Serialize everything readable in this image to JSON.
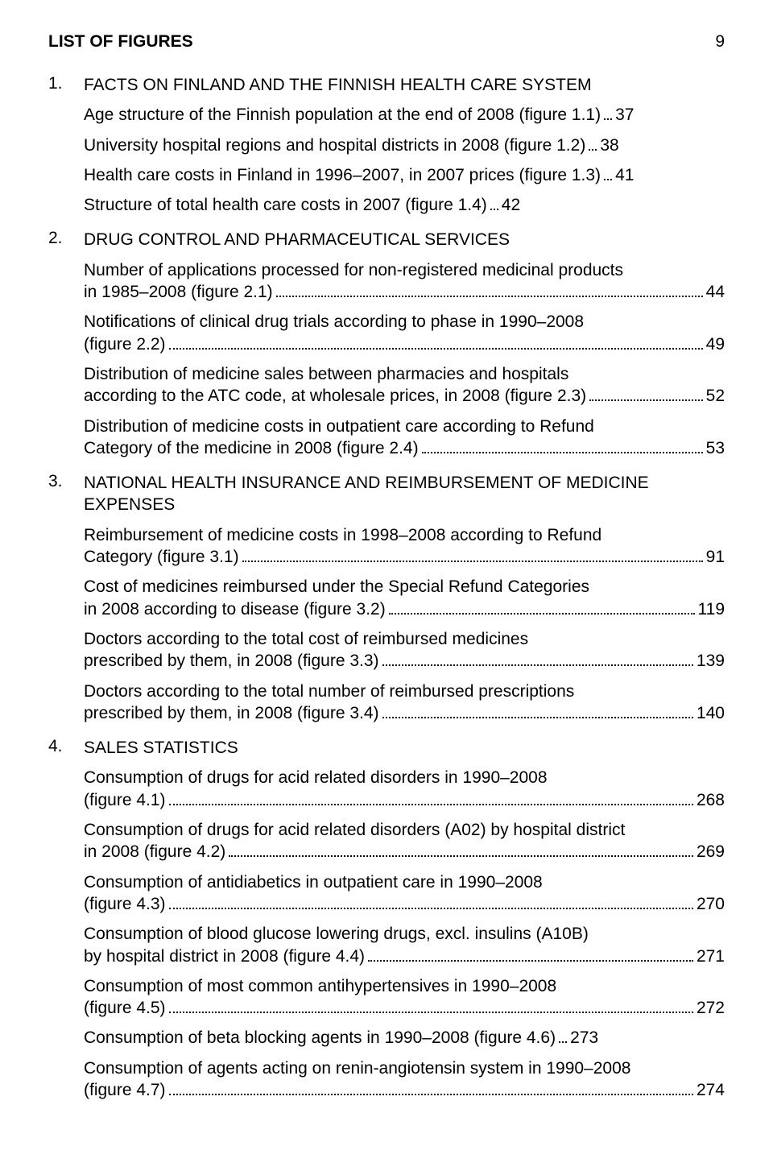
{
  "page_number": "9",
  "title": "LIST OF FIGURES",
  "sections": [
    {
      "num": "1.",
      "heading": "FACTS ON FINLAND AND THE FINNISH HEALTH CARE SYSTEM",
      "entries": [
        {
          "lines": [
            "Age structure of the Finnish population at the end of 2008 (figure 1.1)"
          ],
          "page": "37"
        },
        {
          "lines": [
            "University hospital regions and hospital districts in 2008 (figure 1.2)"
          ],
          "page": "38"
        },
        {
          "lines": [
            "Health care costs in Finland in 1996–2007, in 2007 prices (figure 1.3)"
          ],
          "page": "41"
        },
        {
          "lines": [
            "Structure of total health care costs in 2007 (figure 1.4)"
          ],
          "page": "42"
        }
      ]
    },
    {
      "num": "2.",
      "heading": "DRUG CONTROL AND PHARMACEUTICAL SERVICES",
      "entries": [
        {
          "lines": [
            "Number of applications processed for non-registered medicinal products",
            "in 1985–2008 (figure 2.1)"
          ],
          "page": "44"
        },
        {
          "lines": [
            "Notifications of clinical drug trials according to phase in 1990–2008",
            "(figure 2.2)"
          ],
          "page": "49"
        },
        {
          "lines": [
            "Distribution of medicine sales between pharmacies and hospitals",
            "according to the ATC code, at wholesale prices, in 2008 (figure 2.3)"
          ],
          "page": "52"
        },
        {
          "lines": [
            "Distribution of medicine costs in outpatient care according to Refund",
            "Category of the medicine in 2008 (figure 2.4)"
          ],
          "page": "53"
        }
      ]
    },
    {
      "num": "3.",
      "heading": "NATIONAL HEALTH INSURANCE AND REIMBURSEMENT OF MEDICINE EXPENSES",
      "entries": [
        {
          "lines": [
            "Reimbursement of medicine costs in 1998–2008 according to Refund",
            "Category (figure 3.1)"
          ],
          "page": "91"
        },
        {
          "lines": [
            "Cost of medicines reimbursed under the Special Refund Categories",
            "in 2008 according to disease (figure 3.2)"
          ],
          "page": "119"
        },
        {
          "lines": [
            "Doctors according to the total cost of reimbursed medicines",
            "prescribed by them, in 2008 (figure 3.3)"
          ],
          "page": "139"
        },
        {
          "lines": [
            "Doctors according to the total number of reimbursed prescriptions",
            "prescribed by them, in 2008 (figure 3.4)"
          ],
          "page": "140"
        }
      ]
    },
    {
      "num": "4.",
      "heading": "SALES STATISTICS",
      "entries": [
        {
          "lines": [
            "Consumption of drugs for acid related disorders in 1990–2008",
            "(figure 4.1)"
          ],
          "page": "268"
        },
        {
          "lines": [
            "Consumption of drugs for acid related disorders (A02) by hospital district",
            "in 2008 (figure 4.2)"
          ],
          "page": "269"
        },
        {
          "lines": [
            "Consumption of antidiabetics in outpatient care in 1990–2008",
            "(figure 4.3)"
          ],
          "page": "270"
        },
        {
          "lines": [
            "Consumption of blood glucose lowering drugs, excl. insulins (A10B)",
            "by hospital district in 2008 (figure 4.4)"
          ],
          "page": "271"
        },
        {
          "lines": [
            "Consumption of most common antihypertensives in 1990–2008",
            "(figure 4.5)"
          ],
          "page": "272"
        },
        {
          "lines": [
            "Consumption of beta blocking agents in 1990–2008 (figure 4.6)"
          ],
          "page": "273"
        },
        {
          "lines": [
            "Consumption of agents acting on renin-angiotensin system in 1990–2008",
            "(figure 4.7)"
          ],
          "page": "274"
        }
      ]
    }
  ]
}
